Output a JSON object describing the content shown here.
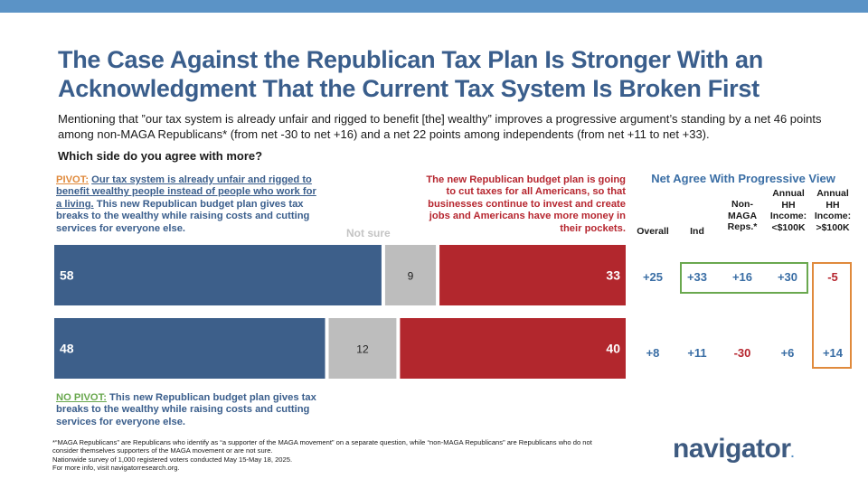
{
  "header": {
    "title": "The Case Against the Republican Tax Plan Is Stronger With an Acknowledgment That the Current Tax System Is Broken First",
    "subtitle": "Mentioning that ”our tax system is already unfair and rigged to benefit [the] wealthy” improves a progressive argument’s standing by a net 46 points among non-MAGA Republicans* (from net -30 to net +16) and a net 22 points among independents (from net +11 to net +33).",
    "question": "Which side do you agree with more?"
  },
  "labels": {
    "pivot_tag": "PIVOT:",
    "pivot_underlined": "Our tax system is already unfair and rigged to benefit wealthy people instead of people who work for a living.",
    "pivot_rest": " This new Republican budget plan gives tax breaks to the wealthy while raising costs and cutting services for everyone else.",
    "right_statement": "The new Republican budget plan is going to cut taxes for all Americans, so that businesses continue to invest and create jobs and Americans have more money in their pockets.",
    "not_sure": "Not sure",
    "nopivot_tag": "NO PIVOT:",
    "nopivot_rest": " This new Republican budget plan gives tax breaks to the wealthy while raising costs and cutting services for everyone else."
  },
  "chart_data": {
    "type": "bar",
    "orientation": "horizontal-stacked",
    "categories": [
      "PIVOT",
      "NO PIVOT"
    ],
    "series": [
      {
        "name": "Progressive statement",
        "values": [
          58,
          48
        ],
        "color": "#3d5f8a"
      },
      {
        "name": "Not sure",
        "values": [
          9,
          12
        ],
        "color": "#bdbdbd"
      },
      {
        "name": "Republican statement",
        "values": [
          33,
          40
        ],
        "color": "#b2272d"
      }
    ],
    "xlim": [
      0,
      100
    ]
  },
  "net_table": {
    "title": "Net Agree With Progressive View",
    "columns": [
      "Overall",
      "Ind",
      "Non-MAGA Reps.*",
      "Annual HH Income: <$100K",
      "Annual HH Income: >$100K"
    ],
    "rows": [
      [
        "+25",
        "+33",
        "+16",
        "+30",
        "-5"
      ],
      [
        "+8",
        "+11",
        "-30",
        "+6",
        "+14"
      ]
    ],
    "colors": {
      "positive": "#3a6ea5",
      "negative": "#b6262f",
      "orange": "#e08a3c",
      "green_box": "#6aa84f",
      "orange_box": "#e08a3c"
    }
  },
  "footnote": {
    "line1": "*“MAGA Republicans” are Republicans who identify as “a supporter of the MAGA movement” on a separate question, while “non-MAGA Republicans” are Republicans who do not consider themselves supporters of the MAGA movement or are not sure.",
    "line2": "Nationwide survey of 1,000 registered voters conducted May 15-May 18, 2025.",
    "line3": "For more info, visit navigatorresearch.org."
  },
  "logo": {
    "text": "navigator",
    "dot": "."
  }
}
